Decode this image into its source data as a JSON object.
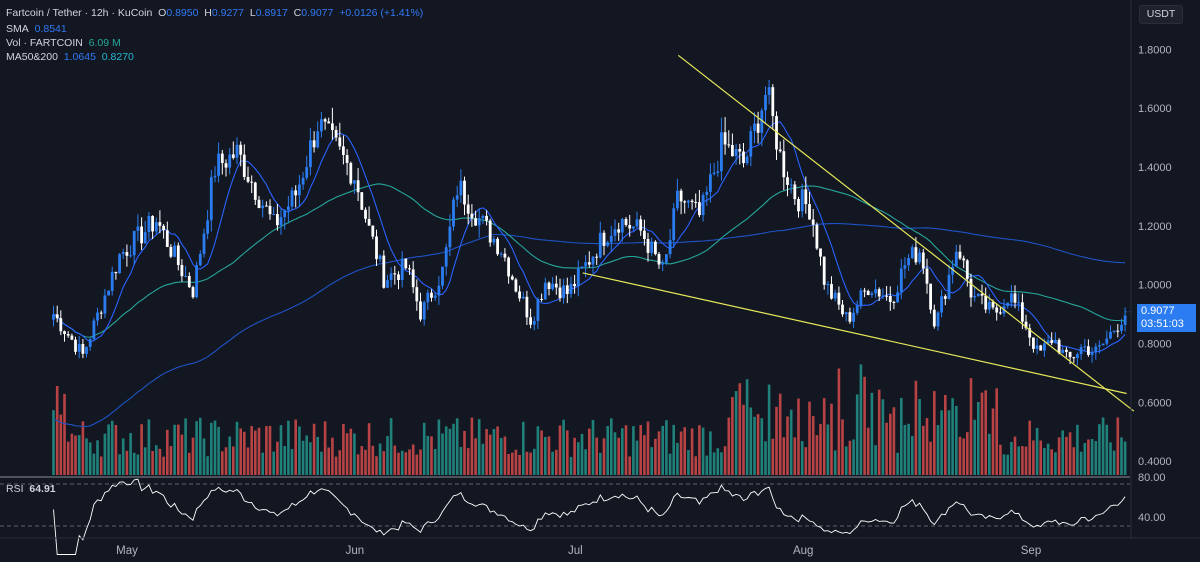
{
  "header": {
    "symbol": "Fartcoin / Tether · 12h · KuCoin",
    "o_label": "O",
    "o_value": "0.8950",
    "h_label": "H",
    "h_value": "0.9277",
    "l_label": "L",
    "l_value": "0.8917",
    "c_label": "C",
    "c_value": "0.9077",
    "change": "+0.0126 (+1.41%)"
  },
  "indicators": {
    "sma_label": "SMA",
    "sma_value": "0.8541",
    "vol_label": "Vol · FARTCOIN",
    "vol_value": "6.09 M",
    "ma_label": "MA50&200",
    "ma50_value": "1.0645",
    "ma200_value": "0.8270",
    "rsi_label": "RSI",
    "rsi_value": "64.91"
  },
  "quote_currency": "USDT",
  "last_price": "0.9077",
  "countdown": "03:51:03",
  "colors": {
    "background": "#131722",
    "up": "#2a7cf0",
    "down": "#ffffff",
    "vol_up": "#26a69a",
    "vol_down": "#ef5350",
    "sma": "#2962ff",
    "ma50": "#26a69a",
    "ma200": "#1e53c5",
    "trendline": "#e8e85a",
    "rsi": "#ffffff",
    "accent": "#2a7cf0"
  },
  "chart_data": {
    "type": "candlestick",
    "title": "Fartcoin / Tether · 12h · KuCoin",
    "y_ticks": [
      "0.4000",
      "0.6000",
      "0.8000",
      "1.0000",
      "1.2000",
      "1.4000",
      "1.6000",
      "1.8000"
    ],
    "ylim": [
      0.37,
      1.9
    ],
    "x_ticks": [
      "May",
      "Jun",
      "Jul",
      "Aug",
      "Sep"
    ],
    "rsi_ticks": [
      "80.00",
      "40.00"
    ],
    "grid": false,
    "keyframes": [
      {
        "x": "Apr 21",
        "close": 0.9
      },
      {
        "x": "Apr 25",
        "close": 0.76
      },
      {
        "x": "Apr 30",
        "close": 1.1
      },
      {
        "x": "May 5",
        "close": 1.22
      },
      {
        "x": "May 8",
        "close": 1.07
      },
      {
        "x": "May 10",
        "close": 0.98
      },
      {
        "x": "May 13",
        "close": 1.4
      },
      {
        "x": "May 16",
        "close": 1.45
      },
      {
        "x": "May 19",
        "close": 1.3
      },
      {
        "x": "May 21",
        "close": 1.2
      },
      {
        "x": "May 24",
        "close": 1.31
      },
      {
        "x": "May 27",
        "close": 1.55
      },
      {
        "x": "May 29",
        "close": 1.48
      },
      {
        "x": "Jun 1",
        "close": 1.37
      },
      {
        "x": "Jun 3",
        "close": 1.18
      },
      {
        "x": "Jun 5",
        "close": 1.02
      },
      {
        "x": "Jun 8",
        "close": 1.06
      },
      {
        "x": "Jun 10",
        "close": 0.9
      },
      {
        "x": "Jun 13",
        "close": 1.05
      },
      {
        "x": "Jun 15",
        "close": 1.34
      },
      {
        "x": "Jun 18",
        "close": 1.22
      },
      {
        "x": "Jun 21",
        "close": 1.12
      },
      {
        "x": "Jun 23",
        "close": 0.99
      },
      {
        "x": "Jun 25",
        "close": 0.88
      },
      {
        "x": "Jun 27",
        "close": 1.02
      },
      {
        "x": "Jun 30",
        "close": 0.97
      },
      {
        "x": "Jul 2",
        "close": 1.05
      },
      {
        "x": "Jul 5",
        "close": 1.17
      },
      {
        "x": "Jul 7",
        "close": 1.22
      },
      {
        "x": "Jul 10",
        "close": 1.18
      },
      {
        "x": "Jul 13",
        "close": 1.04
      },
      {
        "x": "Jul 15",
        "close": 1.3
      },
      {
        "x": "Jul 18",
        "close": 1.23
      },
      {
        "x": "Jul 21",
        "close": 1.48
      },
      {
        "x": "Jul 24",
        "close": 1.41
      },
      {
        "x": "Jul 27",
        "close": 1.66
      },
      {
        "x": "Jul 29",
        "close": 1.42
      },
      {
        "x": "Jul 31",
        "close": 1.3
      },
      {
        "x": "Aug 2",
        "close": 1.26
      },
      {
        "x": "Aug 4",
        "close": 1.0
      },
      {
        "x": "Aug 7",
        "close": 0.88
      },
      {
        "x": "Aug 10",
        "close": 1.0
      },
      {
        "x": "Aug 13",
        "close": 0.95
      },
      {
        "x": "Aug 15",
        "close": 1.08
      },
      {
        "x": "Aug 17",
        "close": 1.12
      },
      {
        "x": "Aug 19",
        "close": 0.86
      },
      {
        "x": "Aug 22",
        "close": 1.14
      },
      {
        "x": "Aug 24",
        "close": 0.96
      },
      {
        "x": "Aug 27",
        "close": 0.9
      },
      {
        "x": "Aug 29",
        "close": 0.97
      },
      {
        "x": "Aug 31",
        "close": 0.88
      },
      {
        "x": "Sep 2",
        "close": 0.76
      },
      {
        "x": "Sep 4",
        "close": 0.82
      },
      {
        "x": "Sep 6",
        "close": 0.74
      },
      {
        "x": "Sep 8",
        "close": 0.79
      },
      {
        "x": "Sep 10",
        "close": 0.77
      },
      {
        "x": "Sep 12",
        "close": 0.84
      },
      {
        "x": "Sep 14",
        "close": 0.91
      }
    ],
    "trendlines": [
      {
        "name": "resistance",
        "from": {
          "x": "Jul 15",
          "price": 1.78
        },
        "to": {
          "x": "Sep 15",
          "price": 0.57
        }
      },
      {
        "name": "support",
        "from": {
          "x": "Jul 2",
          "price": 1.04
        },
        "to": {
          "x": "Sep 14",
          "price": 0.63
        }
      }
    ],
    "overlays": [
      {
        "name": "SMA",
        "value": 0.8541
      },
      {
        "name": "MA50",
        "value": 1.0645
      },
      {
        "name": "MA200",
        "value": 0.827
      }
    ],
    "last_price": 0.9077
  }
}
